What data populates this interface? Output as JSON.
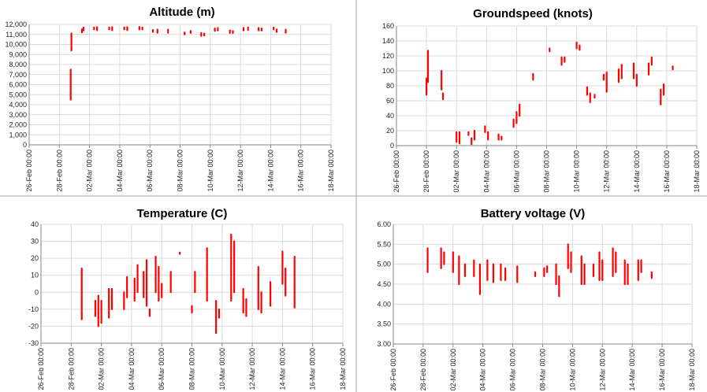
{
  "chart_data": [
    {
      "type": "line",
      "title": "Altitude (m)",
      "xlabel": "",
      "ylabel": "",
      "ylim": [
        0,
        12000
      ],
      "y_step": 1000,
      "y_format": "comma",
      "y_ticks": [
        "0",
        "1,000",
        "2,000",
        "3,000",
        "4,000",
        "5,000",
        "6,000",
        "7,000",
        "8,000",
        "9,000",
        "10,000",
        "11,000",
        "12,000"
      ],
      "x_ticks": [
        "26-Feb 00:00",
        "28-Feb 00:00",
        "02-Mar 00:00",
        "04-Mar 00:00",
        "06-Mar 00:00",
        "08-Mar 00:00",
        "10-Mar 00:00",
        "12-Mar 00:00",
        "14-Mar 00:00",
        "16-Mar 00:00",
        "18-Mar 00:00"
      ],
      "xlim_days": [
        0,
        20
      ],
      "grid": true,
      "series": [
        {
          "color": "#ff0000",
          "segments": [
            {
              "x": 2.75,
              "ymin": 4500,
              "ymax": 7500
            },
            {
              "x": 2.8,
              "ymin": 9400,
              "ymax": 11100
            },
            {
              "x": 3.5,
              "ymin": 11200,
              "ymax": 11500
            },
            {
              "x": 3.6,
              "ymin": 11400,
              "ymax": 11700
            },
            {
              "x": 4.3,
              "ymin": 11500,
              "ymax": 11700
            },
            {
              "x": 4.5,
              "ymin": 11500,
              "ymax": 11650
            },
            {
              "x": 5.3,
              "ymin": 11500,
              "ymax": 11700
            },
            {
              "x": 5.5,
              "ymin": 11500,
              "ymax": 11650
            },
            {
              "x": 6.3,
              "ymin": 11500,
              "ymax": 11700
            },
            {
              "x": 6.5,
              "ymin": 11500,
              "ymax": 11650
            },
            {
              "x": 7.3,
              "ymin": 11500,
              "ymax": 11750
            },
            {
              "x": 7.5,
              "ymin": 11500,
              "ymax": 11700
            },
            {
              "x": 8.2,
              "ymin": 11250,
              "ymax": 11450
            },
            {
              "x": 8.5,
              "ymin": 11250,
              "ymax": 11400
            },
            {
              "x": 9.2,
              "ymin": 11250,
              "ymax": 11400
            },
            {
              "x": 10.3,
              "ymin": 11000,
              "ymax": 11200
            },
            {
              "x": 10.7,
              "ymin": 11150,
              "ymax": 11350
            },
            {
              "x": 11.4,
              "ymin": 10850,
              "ymax": 11150
            },
            {
              "x": 11.6,
              "ymin": 10900,
              "ymax": 11100
            },
            {
              "x": 12.3,
              "ymin": 11350,
              "ymax": 11600
            },
            {
              "x": 12.5,
              "ymin": 11400,
              "ymax": 11650
            },
            {
              "x": 13.3,
              "ymin": 11150,
              "ymax": 11400
            },
            {
              "x": 13.5,
              "ymin": 11150,
              "ymax": 11350
            },
            {
              "x": 14.2,
              "ymin": 11400,
              "ymax": 11650
            },
            {
              "x": 14.5,
              "ymin": 11450,
              "ymax": 11700
            },
            {
              "x": 15.2,
              "ymin": 11400,
              "ymax": 11650
            },
            {
              "x": 15.4,
              "ymin": 11400,
              "ymax": 11600
            },
            {
              "x": 16.2,
              "ymin": 11500,
              "ymax": 11700
            },
            {
              "x": 16.4,
              "ymin": 11250,
              "ymax": 11500
            },
            {
              "x": 17.0,
              "ymin": 11250,
              "ymax": 11400
            }
          ]
        }
      ]
    },
    {
      "type": "line",
      "title": "Groundspeed (knots)",
      "xlabel": "",
      "ylabel": "",
      "ylim": [
        0,
        160
      ],
      "y_step": 20,
      "y_format": "int",
      "y_ticks": [
        "0",
        "20",
        "40",
        "60",
        "80",
        "100",
        "120",
        "140",
        "160"
      ],
      "x_ticks": [
        "26-Feb 00:00",
        "28-Feb 00:00",
        "02-Mar 00:00",
        "04-Mar 00:00",
        "06-Mar 00:00",
        "08-Mar 00:00",
        "10-Mar 00:00",
        "12-Mar 00:00",
        "14-Mar 00:00",
        "16-Mar 00:00",
        "18-Mar 00:00"
      ],
      "xlim_days": [
        0,
        20
      ],
      "grid": true,
      "series": [
        {
          "color": "#ff0000",
          "segments": [
            {
              "x": 2.0,
              "ymin": 68,
              "ymax": 90
            },
            {
              "x": 2.1,
              "ymin": 85,
              "ymax": 127
            },
            {
              "x": 3.0,
              "ymin": 75,
              "ymax": 100
            },
            {
              "x": 3.1,
              "ymin": 62,
              "ymax": 70
            },
            {
              "x": 4.0,
              "ymin": 5,
              "ymax": 18
            },
            {
              "x": 4.2,
              "ymin": 3,
              "ymax": 18
            },
            {
              "x": 4.8,
              "ymin": 14,
              "ymax": 18
            },
            {
              "x": 5.0,
              "ymin": 2,
              "ymax": 10
            },
            {
              "x": 5.2,
              "ymin": 8,
              "ymax": 20
            },
            {
              "x": 5.9,
              "ymin": 18,
              "ymax": 26
            },
            {
              "x": 6.1,
              "ymin": 8,
              "ymax": 18
            },
            {
              "x": 6.8,
              "ymin": 8,
              "ymax": 15
            },
            {
              "x": 7.0,
              "ymin": 8,
              "ymax": 12
            },
            {
              "x": 7.8,
              "ymin": 25,
              "ymax": 35
            },
            {
              "x": 8.0,
              "ymin": 30,
              "ymax": 45
            },
            {
              "x": 8.2,
              "ymin": 40,
              "ymax": 55
            },
            {
              "x": 9.1,
              "ymin": 88,
              "ymax": 96
            },
            {
              "x": 10.2,
              "ymin": 126,
              "ymax": 130
            },
            {
              "x": 11.0,
              "ymin": 108,
              "ymax": 118
            },
            {
              "x": 11.2,
              "ymin": 112,
              "ymax": 118
            },
            {
              "x": 12.0,
              "ymin": 130,
              "ymax": 138
            },
            {
              "x": 12.2,
              "ymin": 128,
              "ymax": 134
            },
            {
              "x": 12.7,
              "ymin": 68,
              "ymax": 78
            },
            {
              "x": 12.9,
              "ymin": 58,
              "ymax": 70
            },
            {
              "x": 13.2,
              "ymin": 64,
              "ymax": 68
            },
            {
              "x": 13.8,
              "ymin": 88,
              "ymax": 95
            },
            {
              "x": 14.0,
              "ymin": 72,
              "ymax": 98
            },
            {
              "x": 14.8,
              "ymin": 85,
              "ymax": 102
            },
            {
              "x": 15.0,
              "ymin": 90,
              "ymax": 108
            },
            {
              "x": 15.8,
              "ymin": 90,
              "ymax": 110
            },
            {
              "x": 16.0,
              "ymin": 80,
              "ymax": 95
            },
            {
              "x": 16.8,
              "ymin": 95,
              "ymax": 110
            },
            {
              "x": 17.0,
              "ymin": 108,
              "ymax": 118
            },
            {
              "x": 17.6,
              "ymin": 55,
              "ymax": 75
            },
            {
              "x": 17.8,
              "ymin": 68,
              "ymax": 82
            },
            {
              "x": 18.4,
              "ymin": 102,
              "ymax": 106
            }
          ]
        }
      ]
    },
    {
      "type": "line",
      "title": "Temperature (C)",
      "xlabel": "",
      "ylabel": "",
      "ylim": [
        -30,
        40
      ],
      "y_step": 10,
      "y_format": "int",
      "y_ticks": [
        "-30",
        "-20",
        "-10",
        "0",
        "10",
        "20",
        "30",
        "40"
      ],
      "x_ticks": [
        "26-Feb 00:00",
        "28-Feb 00:00",
        "02-Mar 00:00",
        "04-Mar 00:00",
        "06-Mar 00:00",
        "08-Mar 00:00",
        "10-Mar 00:00",
        "12-Mar 00:00",
        "14-Mar 00:00",
        "16-Mar 00:00",
        "18-Mar 00:00"
      ],
      "xlim_days": [
        0,
        20
      ],
      "grid": true,
      "series": [
        {
          "color": "#ff0000",
          "segments": [
            {
              "x": 2.7,
              "ymin": -16,
              "ymax": 14
            },
            {
              "x": 3.6,
              "ymin": -14,
              "ymax": -5
            },
            {
              "x": 3.8,
              "ymin": -20,
              "ymax": -2
            },
            {
              "x": 4.0,
              "ymin": -18,
              "ymax": -5
            },
            {
              "x": 4.5,
              "ymin": -15,
              "ymax": 2
            },
            {
              "x": 4.7,
              "ymin": -10,
              "ymax": 2
            },
            {
              "x": 5.5,
              "ymin": -10,
              "ymax": 0
            },
            {
              "x": 5.7,
              "ymin": -3,
              "ymax": 9
            },
            {
              "x": 6.2,
              "ymin": -5,
              "ymax": 8
            },
            {
              "x": 6.4,
              "ymin": 0,
              "ymax": 16
            },
            {
              "x": 6.8,
              "ymin": -3,
              "ymax": 12
            },
            {
              "x": 7.0,
              "ymin": -8,
              "ymax": 19
            },
            {
              "x": 7.2,
              "ymin": -14,
              "ymax": -10
            },
            {
              "x": 7.6,
              "ymin": 0,
              "ymax": 21
            },
            {
              "x": 7.8,
              "ymin": -5,
              "ymax": 15
            },
            {
              "x": 8.0,
              "ymin": -3,
              "ymax": 5
            },
            {
              "x": 8.6,
              "ymin": 0,
              "ymax": 12
            },
            {
              "x": 9.2,
              "ymin": 23,
              "ymax": 23
            },
            {
              "x": 10.2,
              "ymin": 0,
              "ymax": 12
            },
            {
              "x": 10.0,
              "ymin": -12,
              "ymax": -8
            },
            {
              "x": 11.0,
              "ymin": -5,
              "ymax": 26
            },
            {
              "x": 11.6,
              "ymin": -24,
              "ymax": -5
            },
            {
              "x": 11.8,
              "ymin": -15,
              "ymax": -10
            },
            {
              "x": 12.6,
              "ymin": -5,
              "ymax": 34
            },
            {
              "x": 12.8,
              "ymin": 0,
              "ymax": 30
            },
            {
              "x": 13.4,
              "ymin": -12,
              "ymax": 2
            },
            {
              "x": 13.6,
              "ymin": -14,
              "ymax": -4
            },
            {
              "x": 14.4,
              "ymin": -10,
              "ymax": 15
            },
            {
              "x": 14.6,
              "ymin": -12,
              "ymax": 0
            },
            {
              "x": 15.2,
              "ymin": -8,
              "ymax": 6
            },
            {
              "x": 16.0,
              "ymin": 5,
              "ymax": 24
            },
            {
              "x": 16.2,
              "ymin": -2,
              "ymax": 14
            },
            {
              "x": 16.8,
              "ymin": -9,
              "ymax": 21
            }
          ]
        }
      ]
    },
    {
      "type": "line",
      "title": "Battery voltage (V)",
      "xlabel": "",
      "ylabel": "",
      "ylim": [
        3.0,
        6.0
      ],
      "y_step": 0.5,
      "y_format": "fixed2",
      "y_ticks": [
        "3.00",
        "3.50",
        "4.00",
        "4.50",
        "5.00",
        "5.50",
        "6.00"
      ],
      "x_ticks": [
        "26-Feb 00:00",
        "28-Feb 00:00",
        "02-Mar 00:00",
        "04-Mar 00:00",
        "06-Mar 00:00",
        "08-Mar 00:00",
        "10-Mar 00:00",
        "12-Mar 00:00",
        "14-Mar 00:00",
        "16-Mar 00:00",
        "18-Mar 00:00"
      ],
      "xlim_days": [
        0,
        20
      ],
      "grid": true,
      "series": [
        {
          "color": "#ff0000",
          "segments": [
            {
              "x": 2.3,
              "ymin": 4.8,
              "ymax": 5.4
            },
            {
              "x": 3.2,
              "ymin": 4.9,
              "ymax": 5.4
            },
            {
              "x": 3.4,
              "ymin": 5.0,
              "ymax": 5.3
            },
            {
              "x": 4.0,
              "ymin": 4.8,
              "ymax": 5.3
            },
            {
              "x": 4.4,
              "ymin": 4.5,
              "ymax": 5.2
            },
            {
              "x": 4.8,
              "ymin": 4.7,
              "ymax": 5.0
            },
            {
              "x": 5.4,
              "ymin": 4.7,
              "ymax": 5.1
            },
            {
              "x": 5.8,
              "ymin": 4.25,
              "ymax": 5.0
            },
            {
              "x": 6.3,
              "ymin": 4.6,
              "ymax": 5.1
            },
            {
              "x": 6.7,
              "ymin": 4.55,
              "ymax": 5.0
            },
            {
              "x": 7.2,
              "ymin": 4.6,
              "ymax": 5.0
            },
            {
              "x": 7.5,
              "ymin": 4.6,
              "ymax": 4.9
            },
            {
              "x": 8.3,
              "ymin": 4.55,
              "ymax": 4.95
            },
            {
              "x": 9.5,
              "ymin": 4.7,
              "ymax": 4.8
            },
            {
              "x": 10.1,
              "ymin": 4.7,
              "ymax": 4.9
            },
            {
              "x": 10.3,
              "ymin": 4.8,
              "ymax": 4.95
            },
            {
              "x": 10.9,
              "ymin": 4.5,
              "ymax": 5.0
            },
            {
              "x": 11.1,
              "ymin": 4.2,
              "ymax": 4.7
            },
            {
              "x": 11.7,
              "ymin": 4.9,
              "ymax": 5.5
            },
            {
              "x": 11.9,
              "ymin": 4.8,
              "ymax": 5.3
            },
            {
              "x": 12.6,
              "ymin": 4.5,
              "ymax": 5.2
            },
            {
              "x": 12.8,
              "ymin": 4.5,
              "ymax": 5.0
            },
            {
              "x": 13.4,
              "ymin": 4.7,
              "ymax": 5.0
            },
            {
              "x": 13.8,
              "ymin": 4.6,
              "ymax": 5.3
            },
            {
              "x": 14.0,
              "ymin": 4.6,
              "ymax": 5.1
            },
            {
              "x": 14.7,
              "ymin": 4.7,
              "ymax": 5.4
            },
            {
              "x": 14.9,
              "ymin": 4.8,
              "ymax": 5.3
            },
            {
              "x": 15.5,
              "ymin": 4.5,
              "ymax": 5.1
            },
            {
              "x": 15.7,
              "ymin": 4.5,
              "ymax": 5.0
            },
            {
              "x": 16.4,
              "ymin": 4.6,
              "ymax": 5.1
            },
            {
              "x": 16.6,
              "ymin": 4.8,
              "ymax": 5.1
            },
            {
              "x": 17.3,
              "ymin": 4.65,
              "ymax": 4.8
            }
          ]
        }
      ]
    }
  ]
}
